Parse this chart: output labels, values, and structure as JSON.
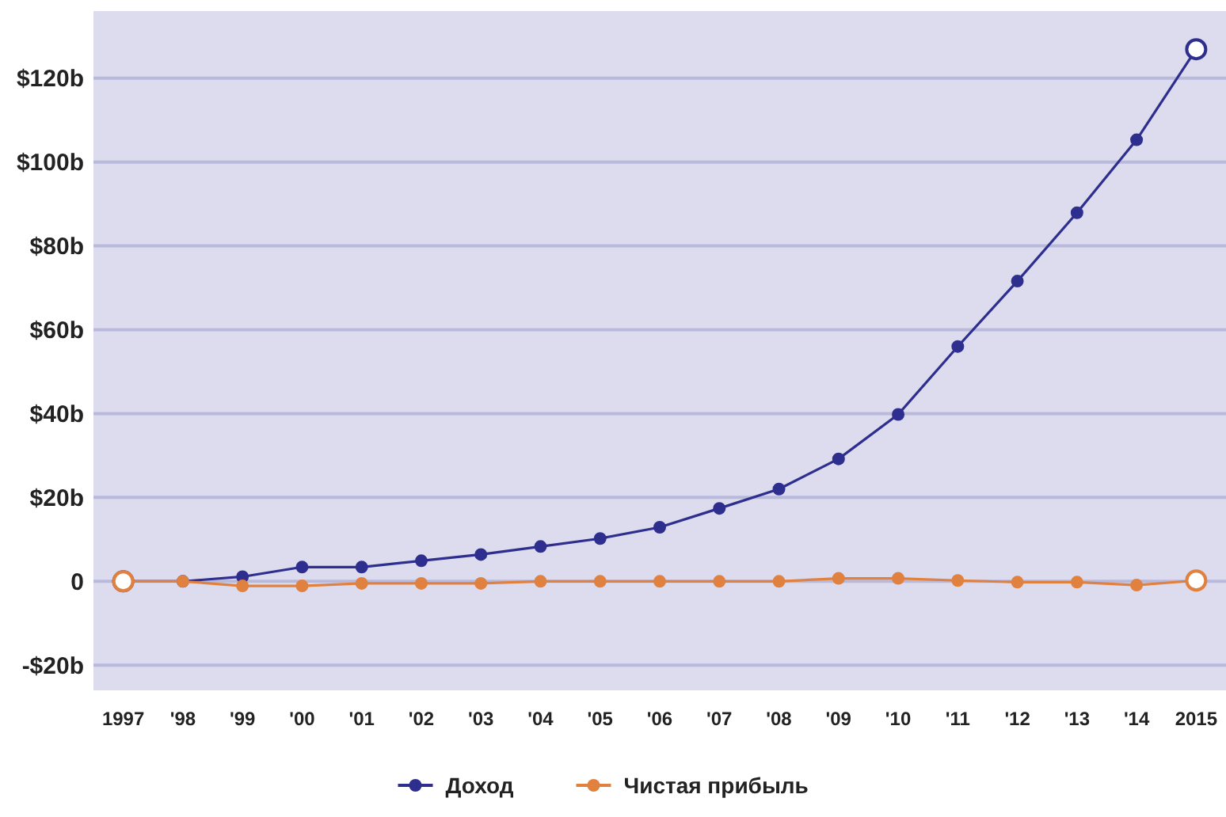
{
  "chart_data": {
    "type": "line",
    "categories": [
      "1997",
      "'98",
      "'99",
      "'00",
      "'01",
      "'02",
      "'03",
      "'04",
      "'05",
      "'06",
      "'07",
      "'08",
      "'09",
      "'10",
      "'11",
      "'12",
      "'13",
      "'14",
      "2015"
    ],
    "series": [
      {
        "name": "Доход",
        "color": "#2e2e8f",
        "values": [
          0,
          0,
          1.1,
          3.4,
          3.4,
          4.9,
          6.4,
          8.3,
          10.2,
          12.9,
          17.4,
          22,
          29.2,
          39.8,
          56,
          71.6,
          87.9,
          105.3,
          126.9
        ]
      },
      {
        "name": "Чистая прибыль",
        "color": "#e0813f",
        "values": [
          0,
          0,
          -1.1,
          -1.1,
          -0.5,
          -0.5,
          -0.5,
          0,
          0,
          0,
          0,
          0,
          0.7,
          0.7,
          0.2,
          -0.2,
          -0.2,
          -0.9,
          0.2
        ]
      }
    ],
    "ylim": [
      -26,
      136
    ],
    "yticks": [
      {
        "value": -20,
        "label": "-$20b"
      },
      0,
      {
        "value": 20,
        "label": "$20b"
      },
      {
        "value": 40,
        "label": "$40b"
      },
      {
        "value": 60,
        "label": "$60b"
      },
      {
        "value": 80,
        "label": "$80b"
      },
      {
        "value": 100,
        "label": "$100b"
      },
      {
        "value": 120,
        "label": "$120b"
      }
    ],
    "grid": "y",
    "legend": "bottom",
    "marker": "circle",
    "line_style": "solid"
  }
}
